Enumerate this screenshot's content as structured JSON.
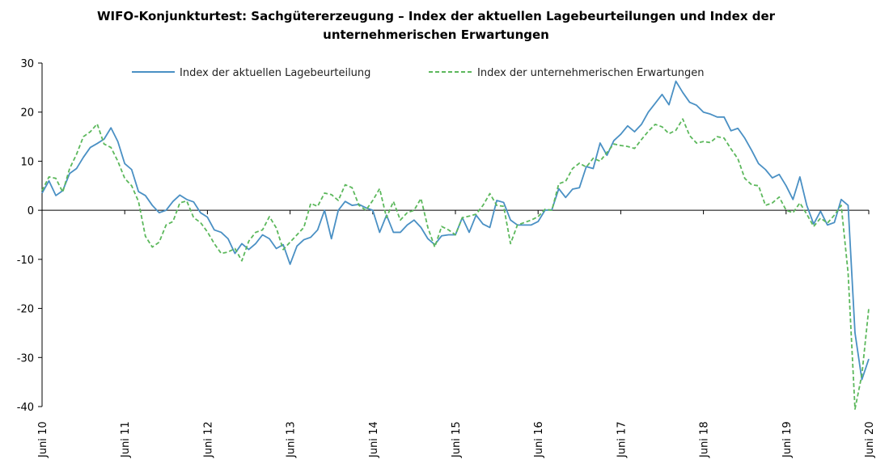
{
  "chart_data": {
    "type": "line",
    "title_line1": "WIFO-Konjunkturtest: Sachgütererzeugung – Index der aktuellen Lagebeurteilungen und Index der",
    "title_line2": "unternehmerischen Erwartungen",
    "ylim": [
      -40,
      30
    ],
    "y_ticks": [
      "30",
      "20",
      "10",
      "0",
      "-10",
      "-20",
      "-30",
      "-40"
    ],
    "y_tick_values": [
      30,
      20,
      10,
      0,
      -10,
      -20,
      -30,
      -40
    ],
    "x_tick_labels": [
      "Juni 10",
      "Juni 11",
      "Juni 12",
      "Juni 13",
      "Juni 14",
      "Juni 15",
      "Juni 16",
      "Juni 17",
      "Juni 18",
      "Juni 19",
      "Juni 20"
    ],
    "grid": false,
    "legend_position": "top",
    "series": [
      {
        "name": "Index der aktuellen Lagebeurteilung",
        "color": "#4a90c4",
        "style": "solid",
        "values": [
          3.5,
          6,
          3,
          4,
          7.5,
          8.5,
          10.8,
          12.8,
          13.6,
          14.5,
          16.8,
          14,
          9.5,
          8.3,
          3.8,
          3,
          1,
          -0.5,
          0,
          1.8,
          3.1,
          2.2,
          1.7,
          -0.5,
          -1.4,
          -4,
          -4.5,
          -5.8,
          -8.8,
          -6.8,
          -8,
          -6.8,
          -5,
          -5.8,
          -7.8,
          -7,
          -11,
          -7.3,
          -6,
          -5.5,
          -4,
          0,
          -5.8,
          0,
          1.8,
          1,
          1.2,
          0.5,
          0,
          -4.5,
          -1,
          -4.5,
          -4.5,
          -3,
          -2,
          -3.5,
          -5.8,
          -7,
          -5.2,
          -5,
          -5,
          -1.5,
          -4.5,
          -1,
          -2.8,
          -3.5,
          2,
          1.6,
          -2,
          -3,
          -3,
          -3,
          -2.3,
          0,
          0.1,
          4.4,
          2.6,
          4.3,
          4.6,
          8.9,
          8.5,
          13.7,
          11.2,
          14.2,
          15.5,
          17.2,
          16,
          17.5,
          20,
          21.8,
          23.6,
          21.5,
          26.3,
          24,
          22,
          21.4,
          20,
          19.6,
          19,
          19,
          16.2,
          16.7,
          14.7,
          12.2,
          9.5,
          8.3,
          6.6,
          7.3,
          5,
          2.2,
          6.8,
          1,
          -2.8,
          -0.2,
          -3,
          -2.5,
          2.2,
          1,
          -25,
          -34.5,
          -30.3
        ]
      },
      {
        "name": "Index der unternehmerischen Erwartungen",
        "color": "#5cb85c",
        "style": "dashed",
        "values": [
          4,
          6.8,
          6.5,
          3.7,
          8.5,
          11.4,
          15,
          16,
          17.6,
          13.5,
          12.8,
          10,
          6.5,
          5,
          1.8,
          -5.3,
          -7.5,
          -6.5,
          -3,
          -2.3,
          1.5,
          1.9,
          -1.5,
          -2.5,
          -4.4,
          -6.8,
          -8.8,
          -8.5,
          -7.8,
          -10.3,
          -6.3,
          -4.5,
          -4,
          -1.3,
          -3.6,
          -8,
          -6.5,
          -5,
          -3.5,
          1.4,
          0.8,
          3.5,
          3.2,
          2,
          5.2,
          4.6,
          1,
          0,
          2,
          4.4,
          -1.5,
          1.8,
          -2,
          -0.5,
          0,
          2.4,
          -3.5,
          -7.5,
          -3.3,
          -4,
          -5,
          -1.5,
          -1.2,
          -0.8,
          1,
          3.4,
          1,
          0.8,
          -6.8,
          -3,
          -2.5,
          -2,
          -1.3,
          0.2,
          0,
          5.4,
          5.9,
          8.5,
          9.6,
          8.8,
          10.6,
          10,
          11.8,
          13.5,
          13.2,
          13,
          12.6,
          14.4,
          16.1,
          17.5,
          17,
          15.6,
          16.3,
          18.6,
          15.2,
          13.7,
          14,
          13.8,
          15,
          14.7,
          12.5,
          10.5,
          6.5,
          5.2,
          5,
          1,
          1.5,
          2.7,
          0,
          -0.5,
          1.5,
          -0.8,
          -3.3,
          -1.6,
          -2.6,
          -1,
          1,
          -12.8,
          -40.5,
          -33.5,
          -20
        ]
      }
    ]
  }
}
